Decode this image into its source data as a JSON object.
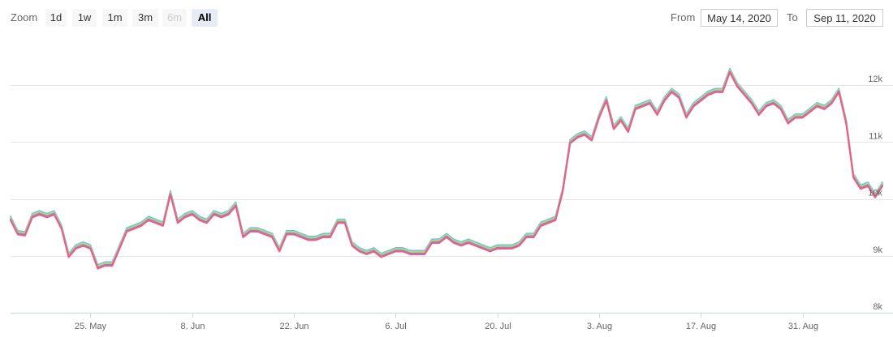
{
  "toolbar": {
    "zoom_label": "Zoom",
    "zoom_buttons": [
      {
        "label": "1d",
        "state": "enabled"
      },
      {
        "label": "1w",
        "state": "enabled"
      },
      {
        "label": "1m",
        "state": "enabled"
      },
      {
        "label": "3m",
        "state": "enabled"
      },
      {
        "label": "6m",
        "state": "disabled"
      },
      {
        "label": "All",
        "state": "selected"
      }
    ],
    "from_label": "From",
    "from_value": "May 14, 2020",
    "to_label": "To",
    "to_value": "Sep 11, 2020"
  },
  "chart_data": {
    "type": "line",
    "title": "",
    "xlabel": "",
    "ylabel": "",
    "xlim": [
      "2020-05-14",
      "2020-09-11"
    ],
    "ylim": [
      8000,
      12800
    ],
    "x_ticks": [
      "2020-05-25",
      "2020-06-08",
      "2020-06-22",
      "2020-07-06",
      "2020-07-20",
      "2020-08-03",
      "2020-08-17",
      "2020-08-31"
    ],
    "x_tick_labels": [
      "25. May",
      "8. Jun",
      "22. Jun",
      "6. Jul",
      "20. Jul",
      "3. Aug",
      "17. Aug",
      "31. Aug"
    ],
    "y_ticks": [
      8000,
      9000,
      10000,
      11000,
      12000
    ],
    "y_tick_labels": [
      "8k",
      "9k",
      "10k",
      "11k",
      "12k"
    ],
    "grid": true,
    "legend": false,
    "colors": [
      "#7cb5ec",
      "#90ed7d",
      "#f7a35c",
      "#8085e9",
      "#f15c80"
    ],
    "series_offsets": [
      40,
      20,
      0,
      -10,
      -25
    ],
    "x": [
      "2020-05-14",
      "2020-05-15",
      "2020-05-16",
      "2020-05-17",
      "2020-05-18",
      "2020-05-19",
      "2020-05-20",
      "2020-05-21",
      "2020-05-22",
      "2020-05-23",
      "2020-05-24",
      "2020-05-25",
      "2020-05-26",
      "2020-05-27",
      "2020-05-28",
      "2020-05-29",
      "2020-05-30",
      "2020-05-31",
      "2020-06-01",
      "2020-06-02",
      "2020-06-03",
      "2020-06-04",
      "2020-06-05",
      "2020-06-06",
      "2020-06-07",
      "2020-06-08",
      "2020-06-09",
      "2020-06-10",
      "2020-06-11",
      "2020-06-12",
      "2020-06-13",
      "2020-06-14",
      "2020-06-15",
      "2020-06-16",
      "2020-06-17",
      "2020-06-18",
      "2020-06-19",
      "2020-06-20",
      "2020-06-21",
      "2020-06-22",
      "2020-06-23",
      "2020-06-24",
      "2020-06-25",
      "2020-06-26",
      "2020-06-27",
      "2020-06-28",
      "2020-06-29",
      "2020-06-30",
      "2020-07-01",
      "2020-07-02",
      "2020-07-03",
      "2020-07-04",
      "2020-07-05",
      "2020-07-06",
      "2020-07-07",
      "2020-07-08",
      "2020-07-09",
      "2020-07-10",
      "2020-07-11",
      "2020-07-12",
      "2020-07-13",
      "2020-07-14",
      "2020-07-15",
      "2020-07-16",
      "2020-07-17",
      "2020-07-18",
      "2020-07-19",
      "2020-07-20",
      "2020-07-21",
      "2020-07-22",
      "2020-07-23",
      "2020-07-24",
      "2020-07-25",
      "2020-07-26",
      "2020-07-27",
      "2020-07-28",
      "2020-07-29",
      "2020-07-30",
      "2020-07-31",
      "2020-08-01",
      "2020-08-02",
      "2020-08-03",
      "2020-08-04",
      "2020-08-05",
      "2020-08-06",
      "2020-08-07",
      "2020-08-08",
      "2020-08-09",
      "2020-08-10",
      "2020-08-11",
      "2020-08-12",
      "2020-08-13",
      "2020-08-14",
      "2020-08-15",
      "2020-08-16",
      "2020-08-17",
      "2020-08-18",
      "2020-08-19",
      "2020-08-20",
      "2020-08-21",
      "2020-08-22",
      "2020-08-23",
      "2020-08-24",
      "2020-08-25",
      "2020-08-26",
      "2020-08-27",
      "2020-08-28",
      "2020-08-29",
      "2020-08-30",
      "2020-08-31",
      "2020-09-01",
      "2020-09-02",
      "2020-09-03",
      "2020-09-04",
      "2020-09-05",
      "2020-09-06",
      "2020-09-07",
      "2020-09-08",
      "2020-09-09",
      "2020-09-10",
      "2020-09-11"
    ],
    "y": [
      9650,
      9400,
      9380,
      9700,
      9750,
      9700,
      9750,
      9500,
      9000,
      9150,
      9200,
      9150,
      8800,
      8850,
      8850,
      9150,
      9450,
      9500,
      9550,
      9650,
      9600,
      9550,
      10100,
      9600,
      9700,
      9750,
      9650,
      9600,
      9750,
      9700,
      9750,
      9900,
      9350,
      9450,
      9450,
      9400,
      9350,
      9100,
      9400,
      9400,
      9350,
      9300,
      9300,
      9350,
      9350,
      9600,
      9600,
      9200,
      9100,
      9050,
      9100,
      9000,
      9050,
      9100,
      9100,
      9050,
      9050,
      9050,
      9250,
      9250,
      9350,
      9250,
      9200,
      9250,
      9200,
      9150,
      9100,
      9150,
      9150,
      9150,
      9200,
      9350,
      9350,
      9550,
      9600,
      9650,
      10150,
      11000,
      11100,
      11150,
      11050,
      11450,
      11750,
      11250,
      11400,
      11200,
      11600,
      11650,
      11700,
      11500,
      11750,
      11900,
      11800,
      11450,
      11650,
      11750,
      11850,
      11900,
      11900,
      12250,
      12000,
      11850,
      11700,
      11500,
      11650,
      11700,
      11600,
      11350,
      11450,
      11450,
      11550,
      11650,
      11600,
      11700,
      11900,
      11350,
      10400,
      10200,
      10250,
      10050,
      10250
    ]
  }
}
